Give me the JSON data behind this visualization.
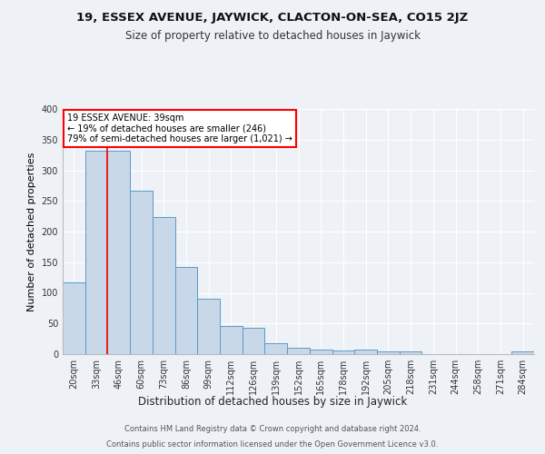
{
  "title1": "19, ESSEX AVENUE, JAYWICK, CLACTON-ON-SEA, CO15 2JZ",
  "title2": "Size of property relative to detached houses in Jaywick",
  "xlabel": "Distribution of detached houses by size in Jaywick",
  "ylabel": "Number of detached properties",
  "categories": [
    "20sqm",
    "33sqm",
    "46sqm",
    "60sqm",
    "73sqm",
    "86sqm",
    "99sqm",
    "112sqm",
    "126sqm",
    "139sqm",
    "152sqm",
    "165sqm",
    "178sqm",
    "192sqm",
    "205sqm",
    "218sqm",
    "231sqm",
    "244sqm",
    "258sqm",
    "271sqm",
    "284sqm"
  ],
  "values": [
    117,
    332,
    332,
    267,
    224,
    142,
    90,
    46,
    43,
    18,
    10,
    7,
    6,
    7,
    4,
    4,
    0,
    0,
    0,
    0,
    5
  ],
  "bar_color": "#c8d8e8",
  "bar_edgecolor": "#5a9ac8",
  "property_line_x": 1.5,
  "annotation_box_text": "19 ESSEX AVENUE: 39sqm\n← 19% of detached houses are smaller (246)\n79% of semi-detached houses are larger (1,021) →",
  "footer1": "Contains HM Land Registry data © Crown copyright and database right 2024.",
  "footer2": "Contains public sector information licensed under the Open Government Licence v3.0.",
  "bg_color": "#eef2f7",
  "plot_bg_color": "#eef2f7",
  "ylim": [
    0,
    400
  ],
  "yticks": [
    0,
    50,
    100,
    150,
    200,
    250,
    300,
    350,
    400
  ],
  "grid_color": "#ffffff",
  "title1_fontsize": 9.5,
  "title2_fontsize": 8.5,
  "ylabel_fontsize": 8,
  "xlabel_fontsize": 8.5,
  "tick_fontsize": 7,
  "ann_fontsize": 7,
  "footer_fontsize": 6
}
